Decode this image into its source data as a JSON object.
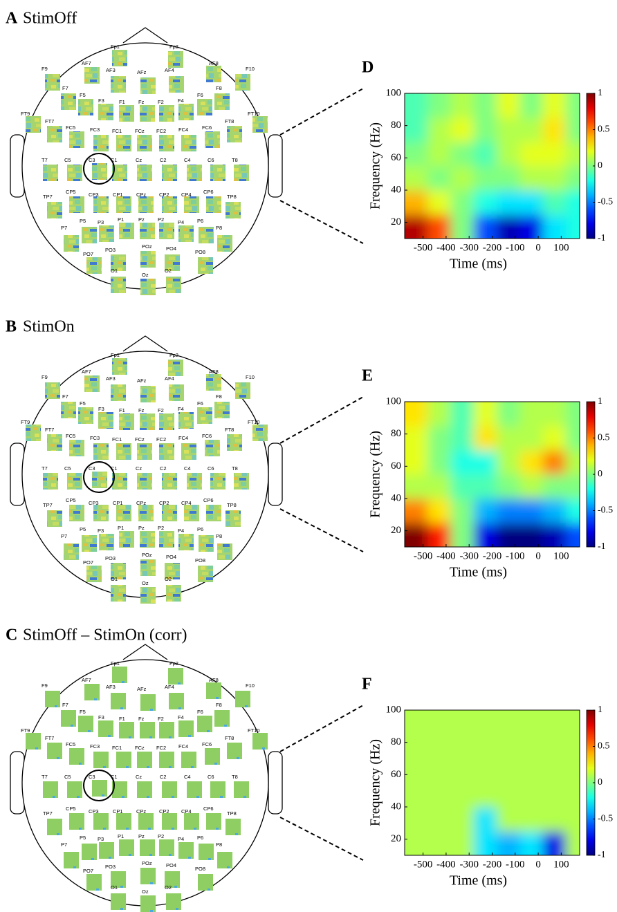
{
  "panels": [
    {
      "letter": "A",
      "title": "StimOff"
    },
    {
      "letter": "B",
      "title": "StimOn"
    },
    {
      "letter": "C",
      "title": "StimOff – StimOn (corr)"
    }
  ],
  "electrodes": [
    "Fp1",
    "Fp2",
    "AF7",
    "AF8",
    "F9",
    "F10",
    "AF3",
    "AFz",
    "AF4",
    "F7",
    "F5",
    "F3",
    "F1",
    "Fz",
    "F2",
    "F4",
    "F6",
    "F8",
    "FT9",
    "FT10",
    "FT7",
    "FC5",
    "FC3",
    "FC1",
    "FCz",
    "FC2",
    "FC4",
    "FC6",
    "FT8",
    "T7",
    "C5",
    "C3",
    "C1",
    "Cz",
    "C2",
    "C4",
    "C6",
    "T8",
    "TP7",
    "CP5",
    "CP3",
    "CP1",
    "CPz",
    "CP2",
    "CP4",
    "CP6",
    "TP8",
    "P7",
    "P5",
    "P3",
    "P1",
    "Pz",
    "P2",
    "P4",
    "P6",
    "P8",
    "PO7",
    "PO3",
    "POz",
    "PO4",
    "PO8",
    "O1",
    "Oz",
    "O2"
  ],
  "chart_data": [
    {
      "type": "heatmap",
      "letter": "D",
      "xlabel": "Time (ms)",
      "ylabel": "Frequency (Hz)",
      "xlim": [
        -580,
        180
      ],
      "ylim": [
        10,
        100
      ],
      "xticks": [
        -500,
        -400,
        -300,
        -200,
        -100,
        0,
        100
      ],
      "yticks": [
        20,
        40,
        60,
        80,
        100
      ],
      "clim": [
        -1,
        1
      ],
      "cticks": [
        -1,
        -0.5,
        0,
        0.5,
        1
      ],
      "time_bins": [
        -580,
        -480,
        -380,
        -280,
        -180,
        -80,
        20,
        120,
        180
      ],
      "freq_bins": [
        10,
        25,
        40,
        55,
        70,
        85,
        100
      ],
      "z": [
        [
          0.9,
          0.6,
          0.0,
          -0.6,
          -0.9,
          -0.8,
          -0.3,
          -0.2
        ],
        [
          0.4,
          0.2,
          0.0,
          -0.2,
          -0.3,
          -0.3,
          -0.1,
          -0.2
        ],
        [
          0.1,
          0.0,
          0.1,
          0.0,
          0.0,
          0.1,
          0.1,
          0.0
        ],
        [
          0.0,
          0.1,
          0.0,
          -0.1,
          0.1,
          0.2,
          0.2,
          0.1
        ],
        [
          -0.1,
          0.1,
          0.2,
          0.0,
          0.1,
          0.1,
          0.3,
          0.0
        ],
        [
          -0.1,
          0.0,
          0.1,
          0.0,
          0.2,
          0.0,
          0.2,
          0.0
        ]
      ]
    },
    {
      "type": "heatmap",
      "letter": "E",
      "xlabel": "Time (ms)",
      "ylabel": "Frequency (Hz)",
      "xlim": [
        -580,
        180
      ],
      "ylim": [
        10,
        100
      ],
      "xticks": [
        -500,
        -400,
        -300,
        -200,
        -100,
        0,
        100
      ],
      "yticks": [
        20,
        40,
        60,
        80,
        100
      ],
      "clim": [
        -1,
        1
      ],
      "cticks": [
        -1,
        -0.5,
        0,
        0.5,
        1
      ],
      "time_bins": [
        -580,
        -480,
        -380,
        -280,
        -180,
        -80,
        20,
        120,
        180
      ],
      "freq_bins": [
        10,
        25,
        40,
        55,
        70,
        85,
        100
      ],
      "z": [
        [
          1.0,
          0.7,
          0.0,
          -0.8,
          -1.0,
          -1.0,
          -0.9,
          -0.6
        ],
        [
          0.5,
          0.3,
          0.0,
          -0.4,
          -0.5,
          -0.5,
          -0.4,
          -0.2
        ],
        [
          0.1,
          0.1,
          -0.1,
          -0.1,
          0.0,
          0.1,
          0.0,
          0.0
        ],
        [
          0.2,
          0.0,
          -0.2,
          -0.2,
          0.1,
          0.3,
          0.5,
          0.1
        ],
        [
          0.2,
          0.0,
          -0.1,
          0.3,
          0.1,
          0.1,
          0.2,
          0.0
        ],
        [
          0.3,
          0.1,
          -0.1,
          0.2,
          0.0,
          0.1,
          0.1,
          0.0
        ]
      ]
    },
    {
      "type": "heatmap",
      "letter": "F",
      "xlabel": "Time (ms)",
      "ylabel": "Frequency (Hz)",
      "xlim": [
        -580,
        180
      ],
      "ylim": [
        10,
        100
      ],
      "xticks": [
        -500,
        -400,
        -300,
        -200,
        -100,
        0,
        100
      ],
      "yticks": [
        20,
        40,
        60,
        80,
        100
      ],
      "clim": [
        -1,
        1
      ],
      "cticks": [
        -1,
        -0.5,
        0,
        0.5,
        1
      ],
      "time_bins": [
        -580,
        -480,
        -380,
        -280,
        -180,
        -80,
        20,
        120,
        180
      ],
      "freq_bins": [
        10,
        25,
        40,
        55,
        70,
        85,
        100
      ],
      "z": [
        [
          0.1,
          0.1,
          0.1,
          -0.3,
          -0.4,
          -0.3,
          -0.8,
          0.1
        ],
        [
          0.1,
          0.1,
          0.1,
          -0.3,
          0.1,
          0.1,
          0.1,
          0.1
        ],
        [
          0.1,
          0.1,
          0.1,
          0.1,
          0.1,
          0.1,
          0.1,
          0.1
        ],
        [
          0.1,
          0.1,
          0.1,
          0.1,
          0.1,
          0.1,
          0.1,
          0.1
        ],
        [
          0.1,
          0.1,
          0.1,
          0.1,
          0.1,
          0.1,
          0.1,
          0.1
        ],
        [
          0.1,
          0.1,
          0.1,
          0.1,
          0.1,
          0.1,
          0.1,
          0.1
        ]
      ]
    }
  ]
}
